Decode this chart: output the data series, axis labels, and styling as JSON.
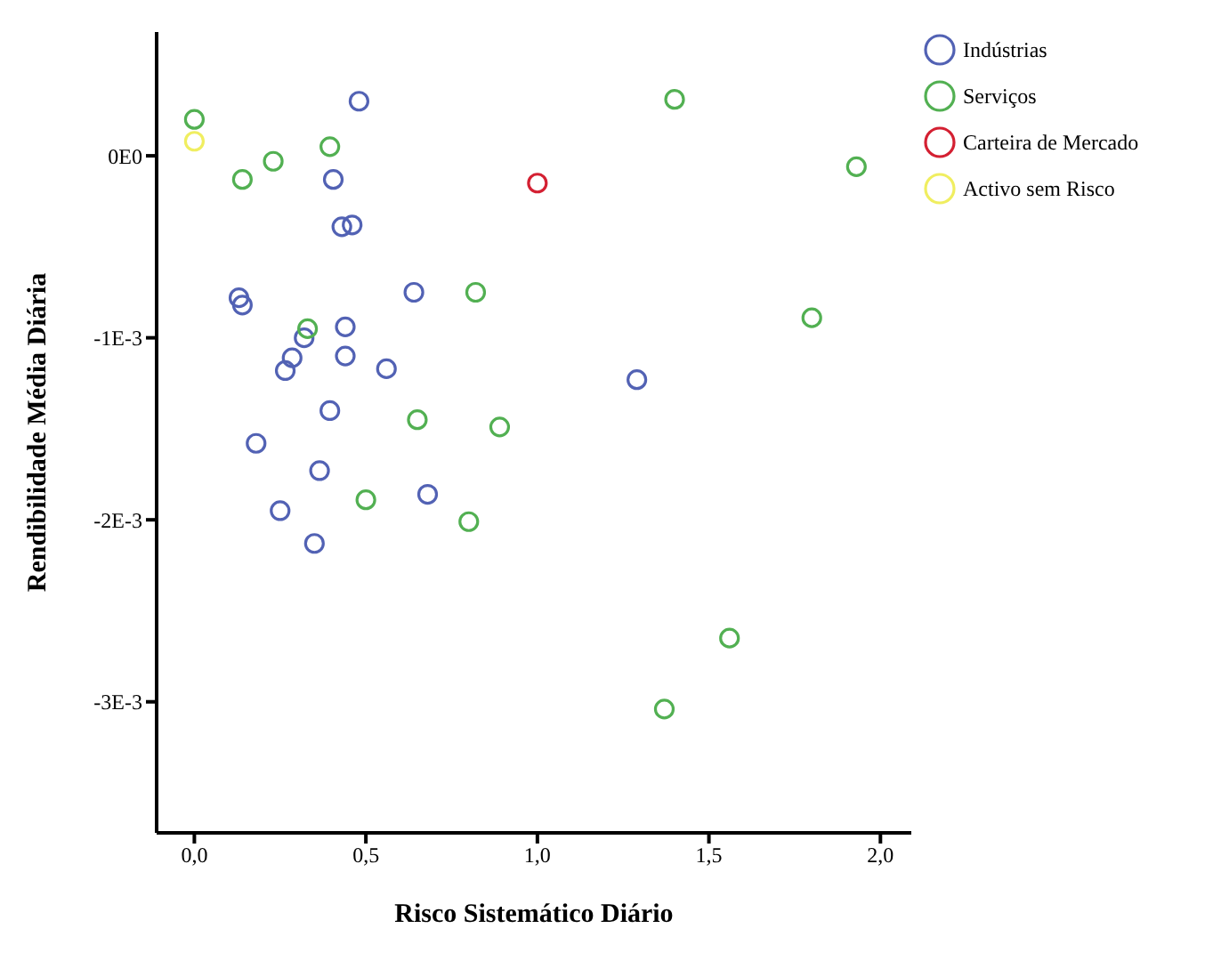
{
  "chart_data": {
    "type": "scatter",
    "xlabel": "Risco Sistemático Diário",
    "ylabel": "Rendibilidade Média Diária",
    "marker": "circle",
    "grid": false,
    "legend": "top right",
    "xlim": [
      -0.11,
      2.09
    ],
    "ylim": [
      -0.00372,
      0.00068
    ],
    "xticks": [
      {
        "value": 0,
        "label": "0,0"
      },
      {
        "value": 0.5,
        "label": "0,5"
      },
      {
        "value": 1,
        "label": "1,0"
      },
      {
        "value": 1.5,
        "label": "1,5"
      },
      {
        "value": 2,
        "label": "2,0"
      }
    ],
    "yticks": [
      {
        "value": 0,
        "label": "0E0"
      },
      {
        "value": -0.001,
        "label": "-1E-3"
      },
      {
        "value": -0.002,
        "label": "-2E-3"
      },
      {
        "value": -0.003,
        "label": "-3E-3"
      }
    ],
    "series": [
      {
        "name": "Indústrias",
        "color": "#5262b4",
        "x": [
          0.48,
          0.405,
          0.43,
          0.46,
          0.13,
          0.14,
          0.64,
          0.44,
          0.32,
          0.44,
          0.285,
          0.265,
          0.56,
          0.395,
          1.29,
          0.18,
          0.365,
          0.25,
          0.35,
          0.68
        ],
        "values": [
          0.0003,
          -0.00013,
          -0.00039,
          -0.00038,
          -0.00078,
          -0.00082,
          -0.00075,
          -0.00094,
          -0.001,
          -0.0011,
          -0.00111,
          -0.00118,
          -0.00117,
          -0.0014,
          -0.00123,
          -0.00158,
          -0.00173,
          -0.00195,
          -0.00213,
          -0.00186
        ]
      },
      {
        "name": "Serviços",
        "color": "#52b052",
        "x": [
          0.0,
          0.23,
          0.14,
          0.395,
          0.82,
          0.33,
          0.65,
          0.89,
          0.5,
          0.8,
          1.4,
          1.93,
          1.8,
          1.56,
          1.37
        ],
        "values": [
          0.0002,
          -3e-05,
          -0.00013,
          5e-05,
          -0.00075,
          -0.00095,
          -0.00145,
          -0.00149,
          -0.00189,
          -0.00201,
          0.00031,
          -6e-05,
          -0.00089,
          -0.00265,
          -0.00304
        ]
      },
      {
        "name": "Carteira de Mercado",
        "color": "#d42032",
        "x": [
          1.0
        ],
        "values": [
          -0.00015
        ]
      },
      {
        "name": "Activo sem Risco",
        "color": "#f0ee60",
        "x": [
          0.0
        ],
        "values": [
          8e-05
        ]
      }
    ]
  }
}
